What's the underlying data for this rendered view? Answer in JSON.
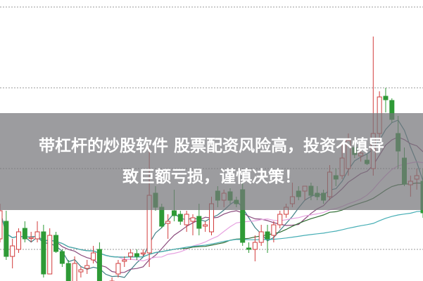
{
  "banner": {
    "line1": "带杠杆的炒股软件 股票配资风险高，投资不慎导",
    "line2": "致巨额亏损，谨慎决策！"
  },
  "chart_data": {
    "type": "candlestick",
    "title": "",
    "xlabel": "",
    "ylabel": "",
    "grid": "horizontal dashed",
    "up_color": "#d23c3c",
    "down_color": "#2e9a36",
    "ma_colors": [
      "#3f7f86",
      "#8a4a7c",
      "#e6a2e0",
      "#2f6d33",
      "#46aeb5"
    ],
    "ma_periods": [
      5,
      10,
      20,
      30,
      60
    ],
    "ylim": [
      5,
      45
    ],
    "candles": [
      [
        11.0,
        16.0,
        10.5,
        15.0
      ],
      [
        13.5,
        15.0,
        8.0,
        8.5
      ],
      [
        8.5,
        11.0,
        6.8,
        10.0
      ],
      [
        9.5,
        12.5,
        9.0,
        12.0
      ],
      [
        12.5,
        13.5,
        10.5,
        11.0
      ],
      [
        11.2,
        12.0,
        10.5,
        11.2
      ],
      [
        11.0,
        13.5,
        10.5,
        12.0
      ],
      [
        12.0,
        13.0,
        5.5,
        6.0
      ],
      [
        6.0,
        12.5,
        6.0,
        11.5
      ],
      [
        11.5,
        12.0,
        9.0,
        9.2
      ],
      [
        9.2,
        9.5,
        7.0,
        7.5
      ],
      [
        7.5,
        8.0,
        3.5,
        4.5
      ],
      [
        4.5,
        8.5,
        2.0,
        7.5
      ],
      [
        6.3,
        7.0,
        5.5,
        6.6
      ],
      [
        6.8,
        8.0,
        6.0,
        7.2
      ],
      [
        8.0,
        10.0,
        7.5,
        9.0
      ],
      [
        9.5,
        10.5,
        3.0,
        3.5
      ],
      [
        3.7,
        4.5,
        3.0,
        3.5
      ],
      [
        3.0,
        5.5,
        2.5,
        5.0
      ],
      [
        6.0,
        8.0,
        5.5,
        7.5
      ],
      [
        7.8,
        8.5,
        7.0,
        8.0
      ],
      [
        8.5,
        9.5,
        8.0,
        9.0
      ],
      [
        8.9,
        9.5,
        8.0,
        8.5
      ],
      [
        9.0,
        9.5,
        8.5,
        9.0
      ],
      [
        9.0,
        24.0,
        7.0,
        17.2
      ],
      [
        17.5,
        18.5,
        15.0,
        15.5
      ],
      [
        15.5,
        16.0,
        12.5,
        12.8
      ],
      [
        13.2,
        14.5,
        11.0,
        13.5
      ],
      [
        15.0,
        18.0,
        13.5,
        14.3
      ],
      [
        14.5,
        15.0,
        13.0,
        13.5
      ],
      [
        13.0,
        15.0,
        12.0,
        14.5
      ],
      [
        13.5,
        14.5,
        11.5,
        14.0
      ],
      [
        14.2,
        16.0,
        11.5,
        12.5
      ],
      [
        12.8,
        13.5,
        12.0,
        13.0
      ],
      [
        12.0,
        17.0,
        11.5,
        16.0
      ],
      [
        17.8,
        18.5,
        15.5,
        16.5
      ],
      [
        16.5,
        18.0,
        15.5,
        17.5
      ],
      [
        17.7,
        18.2,
        16.0,
        16.5
      ],
      [
        16.5,
        17.0,
        15.5,
        16.0
      ],
      [
        18.0,
        19.0,
        10.0,
        10.5
      ],
      [
        9.7,
        10.5,
        9.0,
        9.5
      ],
      [
        9.5,
        11.5,
        7.8,
        10.5
      ],
      [
        10.5,
        13.0,
        10.0,
        12.0
      ],
      [
        12.0,
        13.0,
        9.0,
        11.0
      ],
      [
        11.5,
        13.5,
        10.5,
        13.0
      ],
      [
        13.0,
        15.0,
        12.5,
        14.5
      ],
      [
        14.5,
        16.0,
        14.0,
        15.5
      ],
      [
        16.0,
        19.0,
        15.5,
        17.0
      ],
      [
        17.8,
        18.5,
        16.5,
        17.0
      ],
      [
        17.8,
        18.5,
        16.5,
        18.5
      ],
      [
        18.5,
        19.0,
        16.5,
        17.2
      ],
      [
        17.5,
        18.5,
        16.5,
        17.0
      ],
      [
        17.5,
        18.0,
        16.0,
        16.5
      ],
      [
        17.0,
        21.5,
        16.5,
        20.5
      ],
      [
        20.0,
        21.0,
        18.5,
        19.5
      ],
      [
        20.0,
        24.5,
        19.5,
        22.5
      ],
      [
        21.0,
        26.0,
        20.0,
        25.0
      ],
      [
        24.0,
        25.0,
        22.5,
        23.0
      ],
      [
        22.8,
        23.5,
        22.0,
        23.2
      ],
      [
        22.2,
        23.0,
        21.5,
        21.7
      ],
      [
        21.0,
        39.8,
        20.0,
        26.0
      ],
      [
        26.0,
        32.0,
        25.0,
        31.2
      ],
      [
        31.3,
        32.5,
        29.0,
        30.8
      ],
      [
        30.7,
        31.0,
        27.5,
        28.0
      ],
      [
        26.0,
        28.5,
        21.0,
        23.5
      ],
      [
        22.5,
        24.0,
        18.5,
        18.8
      ],
      [
        18.7,
        20.0,
        17.0,
        19.2
      ],
      [
        19.5,
        21.0,
        18.0,
        20.0
      ],
      [
        19.2,
        21.0,
        14.0,
        14.7
      ]
    ]
  }
}
